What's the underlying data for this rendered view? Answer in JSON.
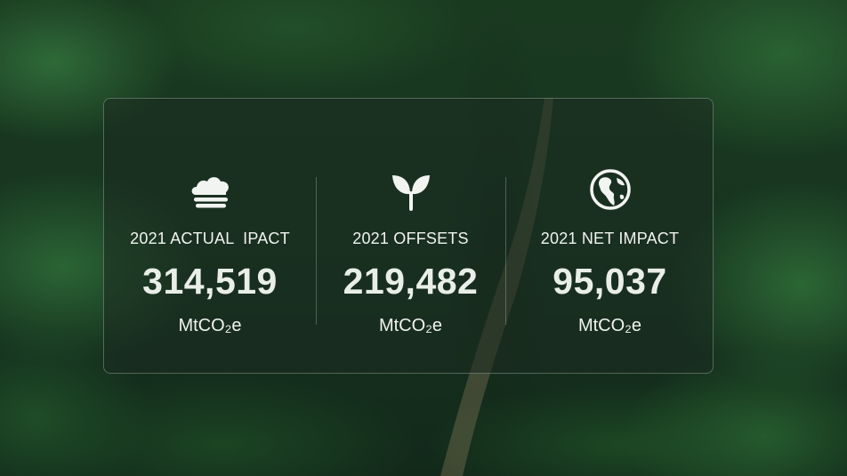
{
  "stats": [
    {
      "icon": "cloud-icon",
      "label": "2021 ACTUAL  IPACT",
      "value": "314,519",
      "unit": "MtCO₂e"
    },
    {
      "icon": "sprout-icon",
      "label": "2021 OFFSETS",
      "value": "219,482",
      "unit": "MtCO₂e"
    },
    {
      "icon": "globe-icon",
      "label": "2021 NET IMPACT",
      "value": "95,037",
      "unit": "MtCO₂e"
    }
  ],
  "colors": {
    "background_forest": "#1a3a20",
    "panel_tint": "#1c2c20",
    "text": "#eef2ee"
  }
}
